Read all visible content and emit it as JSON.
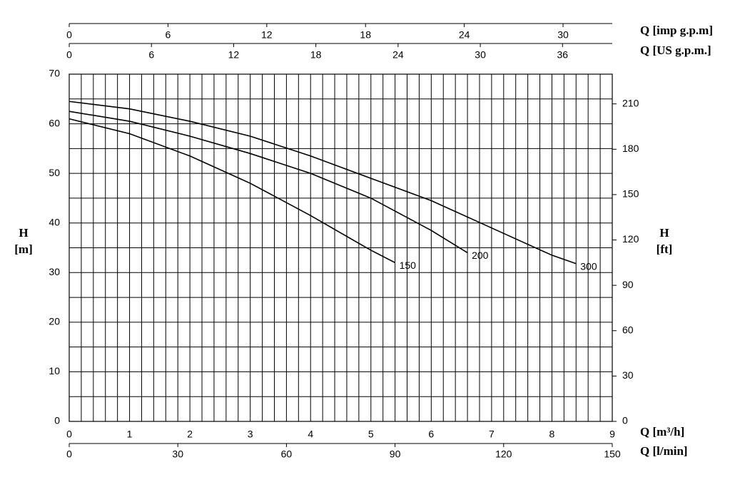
{
  "chart_data": {
    "type": "line",
    "x_label": "Q [m³/h]",
    "xlim": [
      0,
      9
    ],
    "xticks": [
      0,
      1,
      2,
      3,
      4,
      5,
      6,
      7,
      8,
      9
    ],
    "y_label": [
      "H",
      "[m]"
    ],
    "ylim": [
      0,
      70
    ],
    "yticks": [
      0,
      10,
      20,
      30,
      40,
      50,
      60,
      70
    ],
    "y2_label": [
      "H",
      "[ft]"
    ],
    "y2lim": [
      0,
      229.66
    ],
    "y2ticks": [
      0,
      30,
      60,
      90,
      120,
      150,
      180,
      210
    ],
    "x2_label": "Q [l/min]",
    "x2lim": [
      0,
      150
    ],
    "x2ticks": [
      0,
      30,
      60,
      90,
      120,
      150
    ],
    "top_axes": [
      {
        "label": "Q [imp g.p.m]",
        "lim": [
          0,
          32.99
        ],
        "ticks": [
          0,
          6,
          12,
          18,
          24,
          30
        ]
      },
      {
        "label": "Q [US g.p.m.]",
        "lim": [
          0,
          39.63
        ],
        "ticks": [
          0,
          6,
          12,
          18,
          24,
          30,
          36
        ]
      }
    ],
    "grid": true,
    "minor_per_major_x": 5,
    "minor_per_major_y": 2,
    "series": [
      {
        "name": "150",
        "color": "#000000",
        "x": [
          0,
          1,
          2,
          3,
          4,
          5,
          5.4
        ],
        "values": [
          61,
          58,
          53.5,
          48,
          41.5,
          34.5,
          32
        ]
      },
      {
        "name": "200",
        "color": "#000000",
        "x": [
          0,
          1,
          2,
          3,
          4,
          5,
          6,
          6.6
        ],
        "values": [
          62.5,
          60.5,
          57.5,
          54,
          50,
          45,
          38.5,
          34
        ]
      },
      {
        "name": "300",
        "color": "#000000",
        "x": [
          0,
          1,
          2,
          3,
          4,
          5,
          6,
          7,
          8,
          8.4
        ],
        "values": [
          64.5,
          63,
          60.5,
          57.5,
          53.5,
          49,
          44.5,
          39,
          33.5,
          31.8
        ]
      }
    ]
  }
}
